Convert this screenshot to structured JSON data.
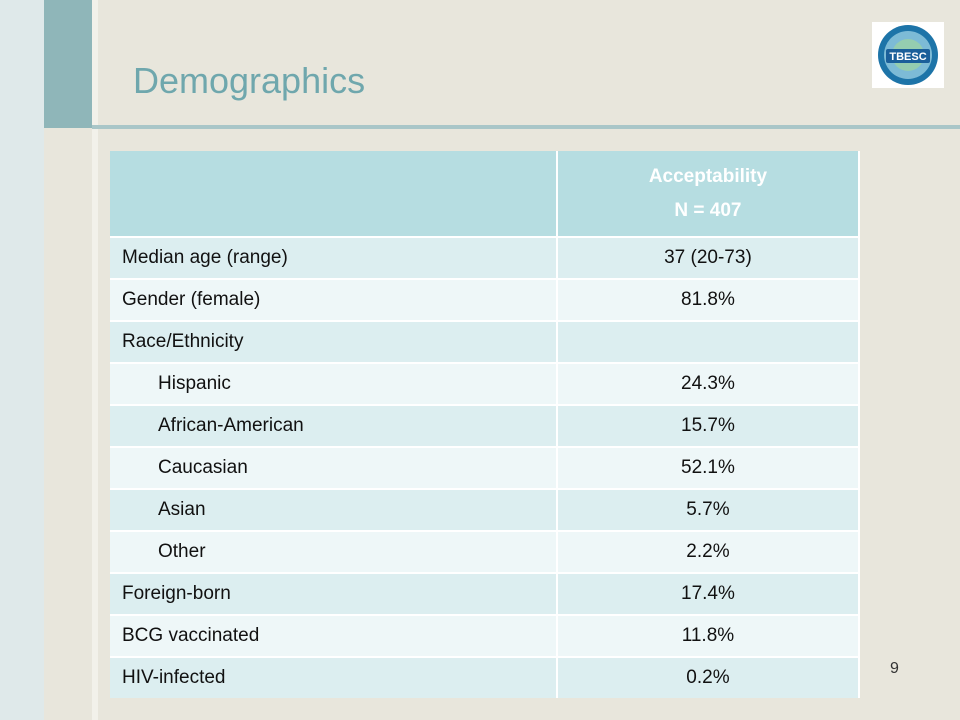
{
  "slide": {
    "title": "Demographics",
    "page_number": "9",
    "logo_text": "TBESC"
  },
  "table": {
    "header": [
      "",
      "Acceptability",
      "N = 407"
    ],
    "rows": [
      {
        "label": "Median age (range)",
        "value": "37 (20-73)",
        "indent": false
      },
      {
        "label": "Gender (female)",
        "value": "81.8%",
        "indent": false
      },
      {
        "label": "Race/Ethnicity",
        "value": "",
        "indent": false
      },
      {
        "label": "Hispanic",
        "value": "24.3%",
        "indent": true
      },
      {
        "label": "African-American",
        "value": "15.7%",
        "indent": true
      },
      {
        "label": "Caucasian",
        "value": "52.1%",
        "indent": true
      },
      {
        "label": "Asian",
        "value": "5.7%",
        "indent": true
      },
      {
        "label": "Other",
        "value": "2.2%",
        "indent": true
      },
      {
        "label": "Foreign-born",
        "value": "17.4%",
        "indent": false
      },
      {
        "label": "BCG vaccinated",
        "value": "11.8%",
        "indent": false
      },
      {
        "label": "HIV-infected",
        "value": "0.2%",
        "indent": false
      }
    ]
  },
  "colors": {
    "title": "#6fa7ad",
    "header_bg": "#b6dde1",
    "row_odd": "#dceef0",
    "row_even": "#eef7f8",
    "accent_band": "#8fb6b9"
  }
}
